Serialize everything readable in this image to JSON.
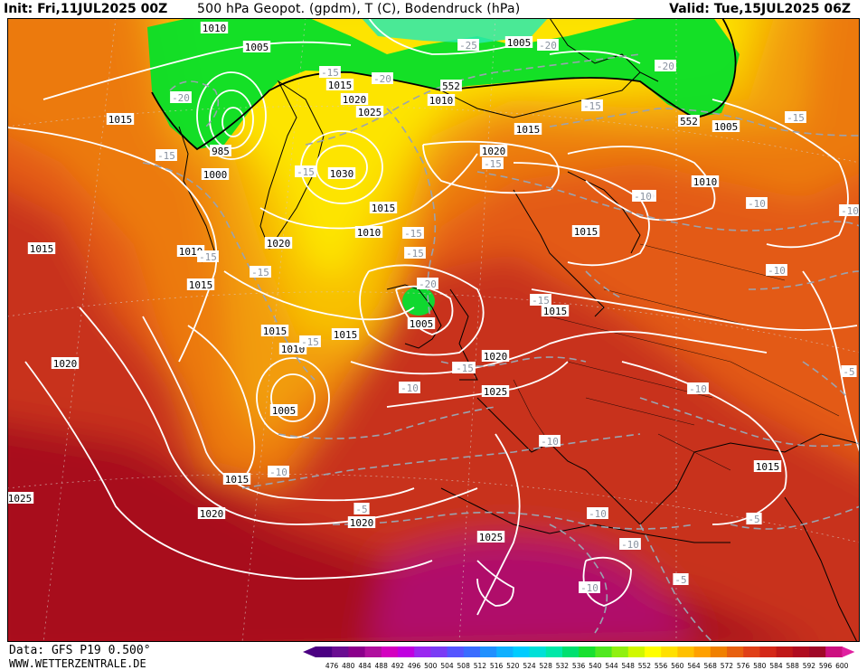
{
  "header": {
    "init": "Init: Fri,11JUL2025 00Z",
    "title": "500 hPa Geopot. (gpdm), T (C), Bodendruck (hPa)",
    "valid": "Valid: Tue,15JUL2025 06Z"
  },
  "footer": {
    "data_source": "Data: GFS P19 0.500°",
    "website": "WWW.WETTERZENTRALE.DE"
  },
  "legend": {
    "units": "gpdm",
    "ticks": [
      "476",
      "480",
      "484",
      "488",
      "492",
      "496",
      "500",
      "504",
      "508",
      "512",
      "516",
      "520",
      "524",
      "528",
      "532",
      "536",
      "540",
      "544",
      "548",
      "552",
      "556",
      "560",
      "564",
      "568",
      "572",
      "576",
      "580",
      "584",
      "588",
      "592",
      "596",
      "600"
    ],
    "colors": [
      "#4b0082",
      "#6a0d91",
      "#8b008b",
      "#b0109e",
      "#d400c0",
      "#c000e0",
      "#9a28f0",
      "#7a3cf5",
      "#5555ff",
      "#3a6cff",
      "#2090ff",
      "#10b0ff",
      "#00ccff",
      "#00e0d8",
      "#00e8a8",
      "#00e070",
      "#18e030",
      "#50e820",
      "#90f010",
      "#d0f800",
      "#ffff00",
      "#ffe000",
      "#ffc000",
      "#ffa000",
      "#f08000",
      "#e86010",
      "#e04018",
      "#d42818",
      "#c01818",
      "#b00c20",
      "#a00828",
      "#cc1080",
      "#e020a0"
    ]
  },
  "pressure_labels": [
    "1010",
    "1005",
    "1015",
    "985",
    "1000",
    "1015",
    "1015",
    "1020",
    "1025",
    "1030",
    "1010",
    "1020",
    "1015",
    "1010",
    "1015",
    "1005",
    "1010",
    "1015",
    "1005",
    "1010",
    "1015",
    "1020",
    "1015",
    "1020",
    "1025",
    "1005",
    "1015",
    "1020",
    "1025",
    "1020",
    "1015",
    "1010",
    "1005",
    "1015",
    "1020",
    "1025",
    "1015"
  ],
  "temperature_labels": [
    "-20",
    "-25",
    "-20",
    "-20",
    "-15",
    "-20",
    "-15",
    "-15",
    "-15",
    "-15",
    "-10",
    "-15",
    "-15",
    "-20",
    "-15",
    "-15",
    "-10",
    "-15",
    "-10",
    "-10",
    "-10",
    "-10",
    "-15",
    "-10",
    "-10",
    "-10",
    "-5",
    "-5",
    "-10",
    "-10",
    "-5",
    "-10",
    "-15",
    "-5",
    "-10",
    "-15"
  ],
  "geopotential_labels": [
    "552",
    "552"
  ]
}
